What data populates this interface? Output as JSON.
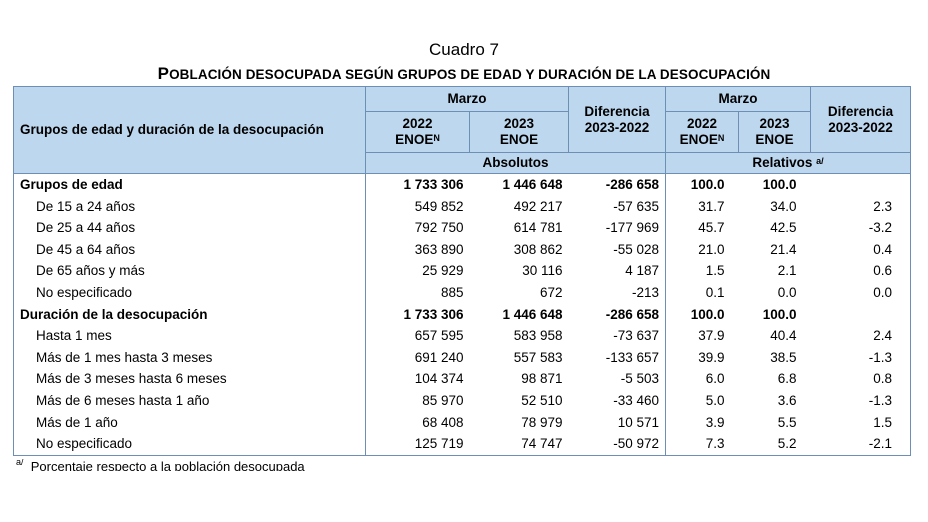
{
  "caption": "Cuadro 7",
  "title_parts": [
    [
      "P",
      "OBLACIÓN DESOCUPADA SEGÚN GRUPOS DE EDAD Y DURACIÓN DE LA DESOCUPACIÓN"
    ]
  ],
  "title": {
    "first": "P",
    "rest": "OBLACIÓN DESOCUPADA SEGÚN GRUPOS DE EDAD Y DURACIÓN DE LA DESOCUPACIÓN"
  },
  "header": {
    "row_label": "Grupos de edad y duración de la desocupación",
    "marzo_abs": "Marzo",
    "marzo_rel": "Marzo",
    "diff_abs": "Diferencia 2023-2022",
    "diff_rel": "Diferencia 2023-2022",
    "y2022_abs": "2022",
    "enoe_n_abs": "ENOE",
    "sup_n_abs": "N",
    "y2023_abs": "2023",
    "enoe_abs": "ENOE",
    "y2022_rel": "2022",
    "enoe_n_rel": "ENOE",
    "sup_n_rel": "N",
    "y2023_rel": "2023",
    "enoe_rel": "ENOE",
    "absolutos": "Absolutos",
    "relativos": "Relativos",
    "relativos_note": "a/"
  },
  "rows": [
    {
      "label": "Grupos de edad",
      "v": [
        "1 733 306",
        "1 446 648",
        "-286 658",
        "100.0",
        "100.0",
        ""
      ]
    },
    {
      "label": "De 15 a 24 años",
      "v": [
        "549 852",
        "492 217",
        "-57 635",
        "31.7",
        "34.0",
        "2.3"
      ]
    },
    {
      "label": "De 25 a 44 años",
      "v": [
        "792 750",
        "614 781",
        "-177 969",
        "45.7",
        "42.5",
        "-3.2"
      ]
    },
    {
      "label": "De 45 a 64 años",
      "v": [
        "363 890",
        "308 862",
        "-55 028",
        "21.0",
        "21.4",
        "0.4"
      ]
    },
    {
      "label": "De 65 años y más",
      "v": [
        "25 929",
        "30 116",
        "4 187",
        "1.5",
        "2.1",
        "0.6"
      ]
    },
    {
      "label": "No especificado",
      "v": [
        "885",
        "672",
        "-213",
        "0.1",
        "0.0",
        "0.0"
      ]
    },
    {
      "label": "Duración de la desocupación",
      "v": [
        "1 733 306",
        "1 446 648",
        "-286 658",
        "100.0",
        "100.0",
        ""
      ]
    },
    {
      "label": "Hasta 1 mes",
      "v": [
        "657 595",
        "583 958",
        "-73 637",
        "37.9",
        "40.4",
        "2.4"
      ]
    },
    {
      "label": "Más de 1 mes hasta 3 meses",
      "v": [
        "691 240",
        "557 583",
        "-133 657",
        "39.9",
        "38.5",
        "-1.3"
      ]
    },
    {
      "label": "Más de 3 meses hasta 6 meses",
      "v": [
        "104 374",
        "98 871",
        "-5 503",
        "6.0",
        "6.8",
        "0.8"
      ]
    },
    {
      "label": "Más de 6 meses hasta 1 año",
      "v": [
        "85 970",
        "52 510",
        "-33 460",
        "5.0",
        "3.6",
        "-1.3"
      ]
    },
    {
      "label": "Más de 1 año",
      "v": [
        "68 408",
        "78 979",
        "10 571",
        "3.9",
        "5.5",
        "1.5"
      ]
    },
    {
      "label": "No especificado",
      "v": [
        "125 719",
        "74 747",
        "-50 972",
        "7.3",
        "5.2",
        "-2.1"
      ]
    }
  ],
  "footnote": {
    "mark": "a/",
    "text": "Porcentaje respecto a la población desocupada"
  }
}
